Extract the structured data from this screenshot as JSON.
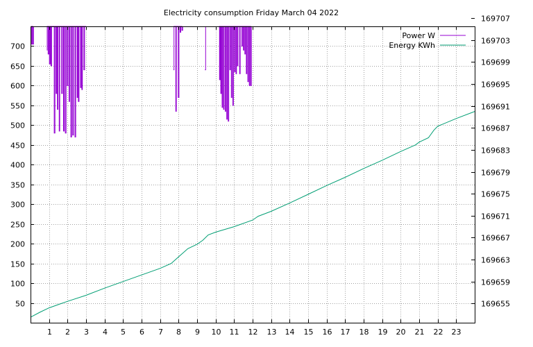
{
  "chart_data": {
    "type": "line",
    "title": "Electricity consumption Friday March 04 2022",
    "xlabel": "",
    "ylabel": "",
    "xlim": [
      0,
      24
    ],
    "x_ticks": [
      "1",
      "2",
      "3",
      "4",
      "5",
      "6",
      "7",
      "8",
      "9",
      "10",
      "11",
      "12",
      "13",
      "14",
      "15",
      "16",
      "17",
      "18",
      "19",
      "20",
      "21",
      "22",
      "23"
    ],
    "y1lim": [
      0,
      750
    ],
    "y1_ticks": [
      "50",
      "100",
      "150",
      "200",
      "250",
      "300",
      "350",
      "400",
      "450",
      "500",
      "550",
      "600",
      "650",
      "700"
    ],
    "y2lim": [
      169651.5,
      169705.5
    ],
    "y2_ticks": [
      "169655",
      "169659",
      "169663",
      "169667",
      "169671",
      "169675",
      "169679",
      "169683",
      "169687",
      "169691",
      "169695",
      "169699",
      "169703",
      "169707"
    ],
    "grid": true,
    "legend_position": "top-right",
    "colors": {
      "power": "#9400d3",
      "energy": "#009e73"
    },
    "series": [
      {
        "name": "Power W",
        "axis": "y1",
        "points": [
          [
            0.03,
            750
          ],
          [
            0.06,
            705
          ],
          [
            0.08,
            750
          ],
          [
            0.12,
            705
          ],
          [
            0.16,
            750
          ],
          [
            0.88,
            690
          ],
          [
            0.9,
            750
          ],
          [
            0.95,
            680
          ],
          [
            0.99,
            750
          ],
          [
            1.02,
            655
          ],
          [
            1.06,
            750
          ],
          [
            1.1,
            650
          ],
          [
            1.14,
            750
          ],
          [
            1.28,
            480
          ],
          [
            1.32,
            750
          ],
          [
            1.38,
            580
          ],
          [
            1.41,
            750
          ],
          [
            1.45,
            540
          ],
          [
            1.48,
            750
          ],
          [
            1.55,
            485
          ],
          [
            1.58,
            750
          ],
          [
            1.68,
            580
          ],
          [
            1.72,
            750
          ],
          [
            1.78,
            485
          ],
          [
            1.82,
            750
          ],
          [
            1.88,
            480
          ],
          [
            1.92,
            750
          ],
          [
            1.98,
            600
          ],
          [
            2.02,
            750
          ],
          [
            2.08,
            560
          ],
          [
            2.11,
            750
          ],
          [
            2.18,
            470
          ],
          [
            2.22,
            750
          ],
          [
            2.28,
            475
          ],
          [
            2.32,
            750
          ],
          [
            2.4,
            470
          ],
          [
            2.44,
            750
          ],
          [
            2.52,
            570
          ],
          [
            2.55,
            750
          ],
          [
            2.58,
            560
          ],
          [
            2.62,
            750
          ],
          [
            2.7,
            595
          ],
          [
            2.73,
            750
          ],
          [
            2.77,
            590
          ],
          [
            2.8,
            750
          ],
          [
            2.88,
            640
          ],
          [
            2.92,
            750
          ],
          [
            3.0,
            750
          ],
          [
            7.72,
            640
          ],
          [
            7.75,
            750
          ],
          [
            7.85,
            535
          ],
          [
            7.88,
            750
          ],
          [
            7.98,
            570
          ],
          [
            8.02,
            750
          ],
          [
            8.08,
            735
          ],
          [
            8.12,
            750
          ],
          [
            8.18,
            740
          ],
          [
            8.22,
            750
          ],
          [
            9.42,
            640
          ],
          [
            9.46,
            750
          ],
          [
            10.18,
            750
          ],
          [
            10.21,
            615
          ],
          [
            10.24,
            750
          ],
          [
            10.28,
            580
          ],
          [
            10.31,
            750
          ],
          [
            10.35,
            545
          ],
          [
            10.38,
            750
          ],
          [
            10.43,
            540
          ],
          [
            10.46,
            750
          ],
          [
            10.52,
            535
          ],
          [
            10.55,
            750
          ],
          [
            10.6,
            515
          ],
          [
            10.63,
            750
          ],
          [
            10.68,
            510
          ],
          [
            10.71,
            750
          ],
          [
            10.77,
            640
          ],
          [
            10.8,
            750
          ],
          [
            10.85,
            570
          ],
          [
            10.88,
            750
          ],
          [
            10.93,
            550
          ],
          [
            10.96,
            750
          ],
          [
            11.02,
            635
          ],
          [
            11.05,
            750
          ],
          [
            11.1,
            630
          ],
          [
            11.13,
            750
          ],
          [
            11.18,
            650
          ],
          [
            11.21,
            750
          ],
          [
            11.3,
            630
          ],
          [
            11.33,
            750
          ],
          [
            11.42,
            700
          ],
          [
            11.45,
            750
          ],
          [
            11.5,
            690
          ],
          [
            11.53,
            750
          ],
          [
            11.58,
            680
          ],
          [
            11.61,
            750
          ],
          [
            11.66,
            630
          ],
          [
            11.69,
            750
          ],
          [
            11.74,
            610
          ],
          [
            11.77,
            750
          ],
          [
            11.82,
            600
          ],
          [
            11.85,
            750
          ],
          [
            11.9,
            600
          ],
          [
            11.93,
            750
          ]
        ]
      },
      {
        "name": "Energy KWh",
        "axis": "y2",
        "points": [
          [
            0,
            169652.5
          ],
          [
            0.5,
            169653.4
          ],
          [
            1,
            169654.2
          ],
          [
            1.5,
            169654.8
          ],
          [
            2,
            169655.4
          ],
          [
            3,
            169656.5
          ],
          [
            4,
            169657.8
          ],
          [
            5,
            169659.0
          ],
          [
            6,
            169660.2
          ],
          [
            7,
            169661.4
          ],
          [
            7.6,
            169662.3
          ],
          [
            8,
            169663.5
          ],
          [
            8.5,
            169665.0
          ],
          [
            9,
            169665.8
          ],
          [
            9.3,
            169666.5
          ],
          [
            9.6,
            169667.5
          ],
          [
            10,
            169668.0
          ],
          [
            11,
            169669.0
          ],
          [
            12,
            169670.2
          ],
          [
            12.3,
            169670.9
          ],
          [
            13,
            169671.8
          ],
          [
            14,
            169673.3
          ],
          [
            15,
            169674.9
          ],
          [
            16,
            169676.5
          ],
          [
            17,
            169678.0
          ],
          [
            18,
            169679.6
          ],
          [
            19,
            169681.1
          ],
          [
            20,
            169682.7
          ],
          [
            20.8,
            169683.9
          ],
          [
            21,
            169684.4
          ],
          [
            21.5,
            169685.2
          ],
          [
            21.8,
            169686.6
          ],
          [
            22,
            169687.3
          ],
          [
            23,
            169688.7
          ],
          [
            24,
            169690.0
          ]
        ]
      }
    ]
  }
}
